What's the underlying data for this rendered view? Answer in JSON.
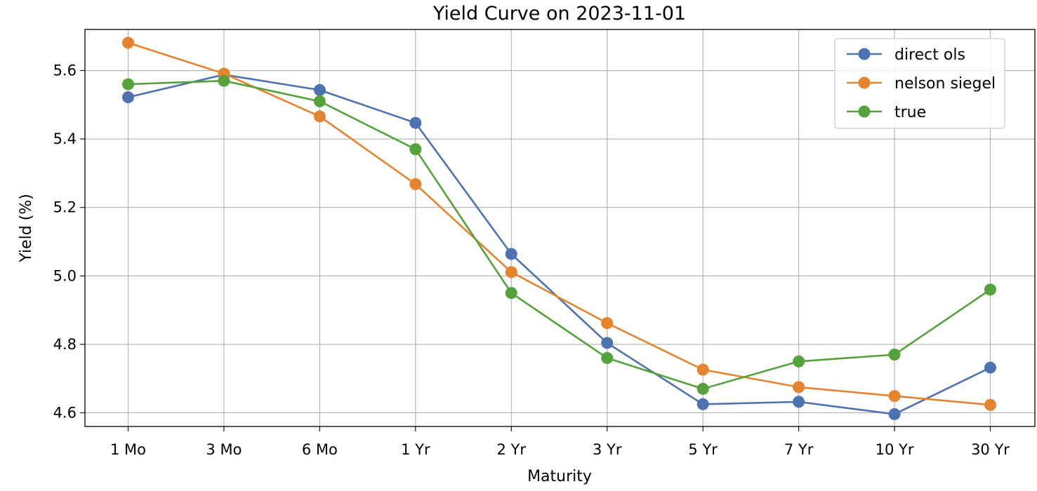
{
  "chart_data": {
    "type": "line",
    "title": "Yield Curve on 2023-11-01",
    "xlabel": "Maturity",
    "ylabel": "Yield (%)",
    "categories": [
      "1 Mo",
      "3 Mo",
      "6 Mo",
      "1 Yr",
      "2 Yr",
      "3 Yr",
      "5 Yr",
      "7 Yr",
      "10 Yr",
      "30 Yr"
    ],
    "ylim": [
      4.56,
      5.72
    ],
    "yticks": [
      "4.6",
      "4.8",
      "5.0",
      "5.2",
      "5.4",
      "5.6"
    ],
    "grid": true,
    "legend_position": "top-right",
    "series": [
      {
        "name": "direct ols",
        "color": "#4c72b0",
        "values": [
          5.522,
          5.588,
          5.543,
          5.447,
          5.064,
          4.804,
          4.625,
          4.632,
          4.596,
          4.732
        ]
      },
      {
        "name": "nelson siegel",
        "color": "#e5832f",
        "values": [
          5.681,
          5.591,
          5.466,
          5.268,
          5.011,
          4.862,
          4.726,
          4.675,
          4.649,
          4.623
        ]
      },
      {
        "name": "true",
        "color": "#55a13b",
        "values": [
          5.56,
          5.57,
          5.51,
          5.37,
          4.95,
          4.76,
          4.67,
          4.75,
          4.77,
          4.96
        ]
      }
    ]
  }
}
